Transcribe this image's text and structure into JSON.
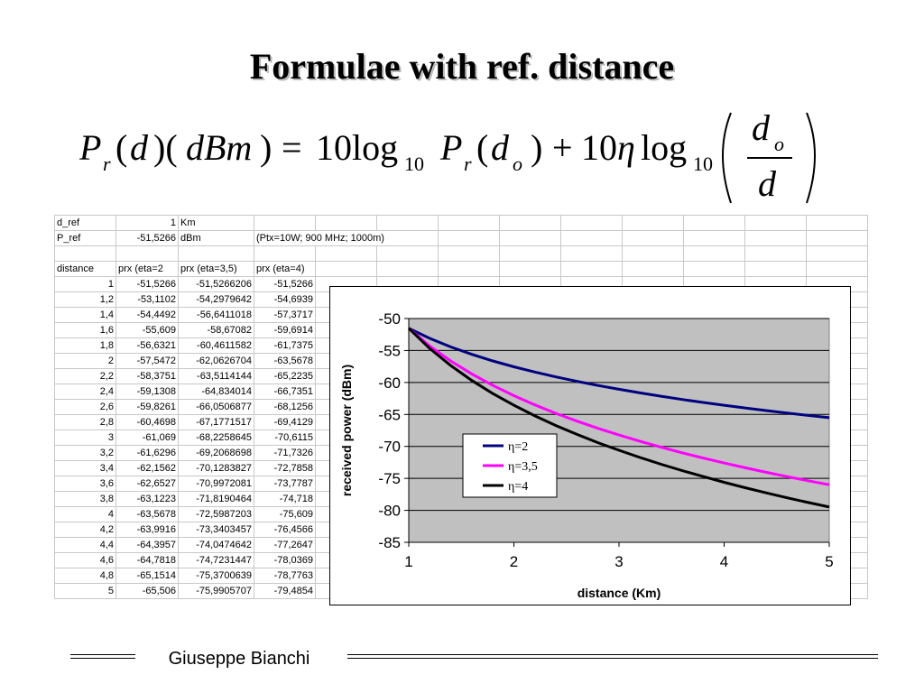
{
  "slide": {
    "title": "Formulae with ref. distance",
    "formula": {
      "lhs": [
        "P",
        "r",
        "(",
        "d",
        ")(",
        "dBm",
        ")",
        "="
      ],
      "rhs_text": "10log10 Pr(do) + 10η log10 (do / d)"
    },
    "footer": "Giuseppe Bianchi"
  },
  "sheet": {
    "rows": [
      [
        "d_ref",
        "1",
        "Km",
        ""
      ],
      [
        "P_ref",
        "-51,5266",
        "dBm",
        "(Ptx=10W; 900 MHz; 1000m)"
      ],
      [
        "",
        "",
        "",
        ""
      ],
      [
        "distance",
        "prx (eta=2",
        "prx (eta=3,5)",
        "prx (eta=4)"
      ],
      [
        "1",
        "-51,5266",
        "-51,5266206",
        "-51,5266"
      ],
      [
        "1,2",
        "-53,1102",
        "-54,2979642",
        "-54,6939"
      ],
      [
        "1,4",
        "-54,4492",
        "-56,6411018",
        "-57,3717"
      ],
      [
        "1,6",
        "-55,609",
        "-58,67082",
        "-59,6914"
      ],
      [
        "1,8",
        "-56,6321",
        "-60,4611582",
        "-61,7375"
      ],
      [
        "2",
        "-57,5472",
        "-62,0626704",
        "-63,5678"
      ],
      [
        "2,2",
        "-58,3751",
        "-63,5114144",
        "-65,2235"
      ],
      [
        "2,4",
        "-59,1308",
        "-64,834014",
        "-66,7351"
      ],
      [
        "2,6",
        "-59,8261",
        "-66,0506877",
        "-68,1256"
      ],
      [
        "2,8",
        "-60,4698",
        "-67,1771517",
        "-69,4129"
      ],
      [
        "3",
        "-61,069",
        "-68,2258645",
        "-70,6115"
      ],
      [
        "3,2",
        "-61,6296",
        "-69,2068698",
        "-71,7326"
      ],
      [
        "3,4",
        "-62,1562",
        "-70,1283827",
        "-72,7858"
      ],
      [
        "3,6",
        "-62,6527",
        "-70,9972081",
        "-73,7787"
      ],
      [
        "3,8",
        "-63,1223",
        "-71,8190464",
        "-74,718"
      ],
      [
        "4",
        "-63,5678",
        "-72,5987203",
        "-75,609"
      ],
      [
        "4,2",
        "-63,9916",
        "-73,3403457",
        "-76,4566"
      ],
      [
        "4,4",
        "-64,3957",
        "-74,0474642",
        "-77,2647"
      ],
      [
        "4,6",
        "-64,7818",
        "-74,7231447",
        "-78,0369"
      ],
      [
        "4,8",
        "-65,1514",
        "-75,3700639",
        "-78,7763"
      ],
      [
        "5",
        "-65,506",
        "-75,9905707",
        "-79,4854"
      ]
    ]
  },
  "chart_data": {
    "type": "line",
    "xlabel": "distance (Km)",
    "ylabel": "received power (dBm)",
    "xlim": [
      1,
      5
    ],
    "ylim": [
      -85,
      -50
    ],
    "xticks": [
      1,
      2,
      3,
      4,
      5
    ],
    "yticks": [
      -50,
      -55,
      -60,
      -65,
      -70,
      -75,
      -80,
      -85
    ],
    "grid": true,
    "legend_position": "lower-middle",
    "plot_background": "#c0c0c0",
    "x": [
      1,
      1.2,
      1.4,
      1.6,
      1.8,
      2,
      2.2,
      2.4,
      2.6,
      2.8,
      3,
      3.2,
      3.4,
      3.6,
      3.8,
      4,
      4.2,
      4.4,
      4.6,
      4.8,
      5
    ],
    "series": [
      {
        "name": "η=2",
        "color": "#000080",
        "values": [
          -51.5266,
          -53.1102,
          -54.4492,
          -55.609,
          -56.6321,
          -57.5472,
          -58.3751,
          -59.1308,
          -59.8261,
          -60.4698,
          -61.069,
          -61.6296,
          -62.1562,
          -62.6527,
          -63.1223,
          -63.5678,
          -63.9916,
          -64.3957,
          -64.7818,
          -65.1514,
          -65.506
        ]
      },
      {
        "name": "η=3,5",
        "color": "#ff00ff",
        "values": [
          -51.5266,
          -54.298,
          -56.6411,
          -58.6708,
          -60.4612,
          -62.0627,
          -63.5114,
          -64.834,
          -66.0507,
          -67.1772,
          -68.2259,
          -69.2069,
          -70.1284,
          -70.9972,
          -71.819,
          -72.5987,
          -73.3403,
          -74.0475,
          -74.7231,
          -75.3701,
          -75.9906
        ]
      },
      {
        "name": "η=4",
        "color": "#000000",
        "values": [
          -51.5266,
          -54.6939,
          -57.3717,
          -59.6914,
          -61.7375,
          -63.5678,
          -65.2235,
          -66.7351,
          -68.1256,
          -69.4129,
          -70.6115,
          -71.7326,
          -72.7858,
          -73.7787,
          -74.718,
          -75.609,
          -76.4566,
          -77.2647,
          -78.0369,
          -78.7763,
          -79.4854
        ]
      }
    ]
  }
}
